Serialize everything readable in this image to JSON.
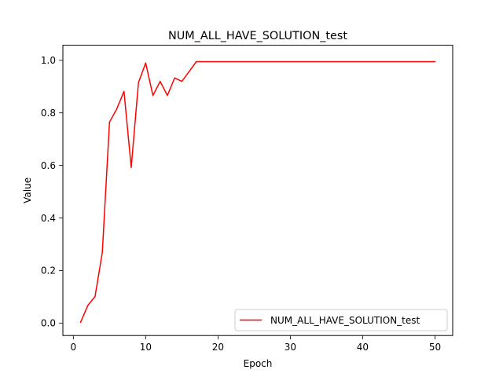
{
  "chart_data": {
    "type": "line",
    "title": "NUM_ALL_HAVE_SOLUTION_test",
    "xlabel": "Epoch",
    "ylabel": "Value",
    "xlim": [
      -1.45,
      52.45
    ],
    "ylim": [
      -0.0475,
      1.0575
    ],
    "xticks": [
      0,
      10,
      20,
      30,
      40,
      50
    ],
    "yticks": [
      0.0,
      0.2,
      0.4,
      0.6,
      0.8,
      1.0
    ],
    "xtick_labels": [
      "0",
      "10",
      "20",
      "30",
      "40",
      "50"
    ],
    "ytick_labels": [
      "0.0",
      "0.2",
      "0.4",
      "0.6",
      "0.8",
      "1.0"
    ],
    "grid": false,
    "legend_position": "lower right",
    "series": [
      {
        "name": "NUM_ALL_HAVE_SOLUTION_test",
        "color": "#ff0000",
        "x": [
          1,
          2,
          3,
          4,
          5,
          6,
          7,
          8,
          9,
          10,
          11,
          12,
          13,
          14,
          15,
          16,
          17,
          18,
          19,
          20,
          21,
          22,
          23,
          24,
          25,
          26,
          27,
          28,
          29,
          30,
          31,
          32,
          33,
          34,
          35,
          36,
          37,
          38,
          39,
          40,
          41,
          42,
          43,
          44,
          45,
          46,
          47,
          48,
          49,
          50
        ],
        "y": [
          0.003,
          0.067,
          0.101,
          0.268,
          0.765,
          0.815,
          0.882,
          0.592,
          0.915,
          0.99,
          0.866,
          0.92,
          0.866,
          0.933,
          0.92,
          0.957,
          0.995,
          0.995,
          0.995,
          0.995,
          0.995,
          0.995,
          0.995,
          0.995,
          0.995,
          0.995,
          0.995,
          0.995,
          0.995,
          0.995,
          0.995,
          0.995,
          0.995,
          0.995,
          0.995,
          0.995,
          0.995,
          0.995,
          0.995,
          0.995,
          0.995,
          0.995,
          0.995,
          0.995,
          0.995,
          0.995,
          0.995,
          0.995,
          0.995,
          0.995
        ]
      }
    ]
  }
}
